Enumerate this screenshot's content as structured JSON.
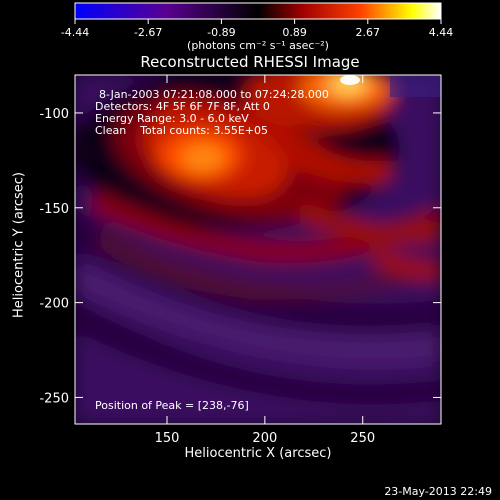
{
  "chart_data": {
    "type": "heatmap",
    "title": "Reconstructed RHESSI Image",
    "xlabel": "Heliocentric X (arcsec)",
    "ylabel": "Heliocentric Y (arcsec)",
    "xlim": [
      103,
      290
    ],
    "ylim": [
      -264,
      -80
    ],
    "xticks": [
      150,
      200,
      250
    ],
    "yticks": [
      -100,
      -150,
      -200,
      -250
    ],
    "colorbar": {
      "ticks": [
        "-4.44",
        "-2.67",
        "-0.89",
        "0.89",
        "2.67",
        "4.44"
      ],
      "range": [
        -4.44,
        4.44
      ],
      "units_label": "(photons cm⁻² s⁻¹ asec⁻²)"
    },
    "annotations": {
      "time_range": "8-Jan-2003 07:21:08.000 to 07:24:28.000",
      "detectors": "Detectors: 4F 5F 6F 7F 8F, Att 0",
      "energy": "Energy Range: 3.0 - 6.0 keV",
      "clean": "Clean    Total counts: 3.55E+05",
      "peak": "Position of Peak = [238,-76]"
    },
    "peak": {
      "x": 238,
      "y": -76
    },
    "secondary_peak": {
      "x": 192,
      "y": -120
    },
    "footer": "23-May-2013 22:49",
    "grid": false,
    "colormap": [
      "#0000ff",
      "#5a0090",
      "#000000",
      "#a00000",
      "#ff4000",
      "#ffff00",
      "#ffffff"
    ]
  }
}
